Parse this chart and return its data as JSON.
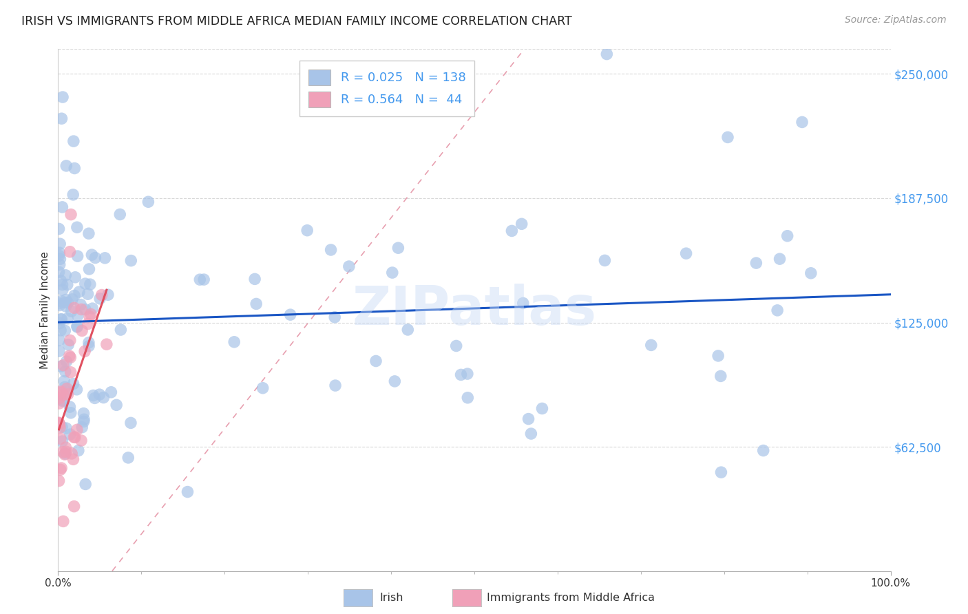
{
  "title": "IRISH VS IMMIGRANTS FROM MIDDLE AFRICA MEDIAN FAMILY INCOME CORRELATION CHART",
  "source": "Source: ZipAtlas.com",
  "ylabel": "Median Family Income",
  "ytick_vals": [
    62500,
    125000,
    187500,
    250000
  ],
  "ytick_labels": [
    "$62,500",
    "$125,000",
    "$187,500",
    "$250,000"
  ],
  "xtick_vals": [
    0.0,
    1.0
  ],
  "xtick_labels": [
    "0.0%",
    "100.0%"
  ],
  "xlim": [
    0,
    1
  ],
  "ylim": [
    0,
    262500
  ],
  "watermark": "ZIPatlas",
  "legend_irish_R": "0.025",
  "legend_irish_N": "138",
  "legend_imm_R": "0.564",
  "legend_imm_N": "44",
  "irish_color": "#a8c4e8",
  "imm_color": "#f0a0b8",
  "irish_line_color": "#1a56c4",
  "imm_line_color": "#e05060",
  "diag_line_color": "#e8a0b0",
  "background_color": "#ffffff",
  "grid_color": "#d8d8d8",
  "ytick_color": "#4499ee",
  "title_fontsize": 12.5,
  "axis_fontsize": 11,
  "legend_fontsize": 13
}
